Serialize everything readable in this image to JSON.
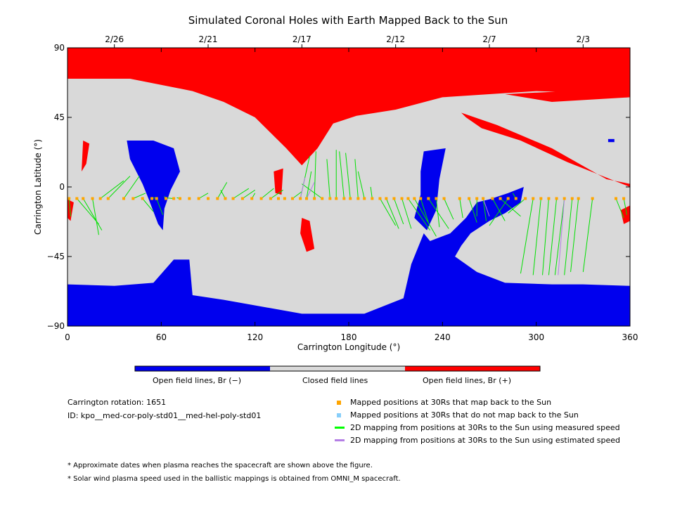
{
  "figure": {
    "title": "Simulated Coronal Holes with Earth Mapped Back to the Sun",
    "colorbar_labels": [
      "Open field lines, Br (−)",
      "Closed field lines",
      "Open field lines, Br (+)"
    ],
    "carrington_rotation_text": "Carrington rotation: 1651",
    "id_text": "ID: kpo__med-cor-poly-std01__med-hel-poly-std01",
    "legend": [
      {
        "label": "Mapped positions at 30Rs that map back to the Sun",
        "color": "#ffa500",
        "kind": "square"
      },
      {
        "label": "Mapped positions at 30Rs that do not map back to the Sun",
        "color": "#87cefa",
        "kind": "square"
      },
      {
        "label": "2D mapping from positions at 30Rs to the Sun using measured speed",
        "color": "#00ff00",
        "kind": "line"
      },
      {
        "label": "2D mapping from positions at 30Rs to the Sun using estimated speed",
        "color": "#b47ee5",
        "kind": "line"
      }
    ],
    "footnotes": [
      "* Approximate dates when plasma reaches the spacecraft are shown above the figure.",
      "* Solar wind plasma speed used in the ballistic mappings is obtained from OMNI_M spacecraft."
    ],
    "colors": {
      "open_negative": "#0000ee",
      "closed": "#d9d9d9",
      "open_positive": "#ff0000"
    }
  },
  "chart_data": {
    "type": "scatter",
    "title": "Simulated Coronal Holes with Earth Mapped Back to the Sun",
    "xlabel": "Carrington Longitude (°)",
    "ylabel": "Carrington Latitude (°)",
    "xlim": [
      0,
      360
    ],
    "ylim": [
      -90,
      90
    ],
    "xticks": [
      0,
      60,
      120,
      180,
      240,
      300,
      360
    ],
    "xtick_labels": [
      "0",
      "60",
      "120",
      "180",
      "240",
      "300",
      "360"
    ],
    "yticks": [
      -90,
      -45,
      0,
      45,
      90
    ],
    "ytick_labels": [
      "−90",
      "−45",
      "0",
      "45",
      "90"
    ],
    "top_dates": [
      {
        "lon": 30,
        "label": "2/26"
      },
      {
        "lon": 90,
        "label": "2/21"
      },
      {
        "lon": 150,
        "label": "2/17"
      },
      {
        "lon": 210,
        "label": "2/12"
      },
      {
        "lon": 270,
        "label": "2/7"
      },
      {
        "lon": 330,
        "label": "2/3"
      }
    ],
    "regions": [
      {
        "name": "Closed field lines",
        "color": "#d9d9d9",
        "polygon": [
          [
            0,
            60
          ],
          [
            40,
            69
          ],
          [
            90,
            66
          ],
          [
            130,
            64
          ],
          [
            200,
            62
          ],
          [
            250,
            67
          ],
          [
            300,
            68
          ],
          [
            360,
            70
          ],
          [
            360,
            -64
          ],
          [
            300,
            -63
          ],
          [
            250,
            -60
          ],
          [
            200,
            -70
          ],
          [
            150,
            -82
          ],
          [
            100,
            -70
          ],
          [
            60,
            -60
          ],
          [
            0,
            -60
          ]
        ]
      },
      {
        "name": "Open field lines, Br (+)",
        "color": "#ff0000",
        "polygon": [
          [
            0,
            90
          ],
          [
            360,
            90
          ],
          [
            360,
            60
          ],
          [
            300,
            62
          ],
          [
            240,
            58
          ],
          [
            210,
            50
          ],
          [
            185,
            46
          ],
          [
            170,
            41
          ],
          [
            160,
            25
          ],
          [
            150,
            14
          ],
          [
            140,
            25
          ],
          [
            130,
            35
          ],
          [
            120,
            45
          ],
          [
            100,
            55
          ],
          [
            80,
            62
          ],
          [
            40,
            70
          ],
          [
            0,
            70
          ]
        ]
      },
      {
        "name": "Open field lines, Br (+)",
        "color": "#ff0000",
        "polygon": [
          [
            252,
            48
          ],
          [
            275,
            40
          ],
          [
            310,
            25
          ],
          [
            345,
            5
          ],
          [
            360,
            2
          ],
          [
            360,
            0
          ],
          [
            350,
            4
          ],
          [
            320,
            16
          ],
          [
            290,
            30
          ],
          [
            265,
            38
          ],
          [
            255,
            45
          ]
        ]
      },
      {
        "name": "Open field lines, Br (+)",
        "color": "#ff0000",
        "polygon": [
          [
            280,
            60
          ],
          [
            310,
            55
          ],
          [
            360,
            58
          ],
          [
            360,
            62
          ],
          [
            320,
            62
          ]
        ]
      },
      {
        "name": "Open field lines, Br (+)",
        "color": "#ff0000",
        "polygon": [
          [
            132,
            10
          ],
          [
            138,
            12
          ],
          [
            137,
            -5
          ],
          [
            133,
            -4
          ]
        ]
      },
      {
        "name": "Open field lines, Br (+)",
        "color": "#ff0000",
        "polygon": [
          [
            150,
            -20
          ],
          [
            155,
            -22
          ],
          [
            158,
            -40
          ],
          [
            153,
            -42
          ],
          [
            149,
            -30
          ]
        ]
      },
      {
        "name": "Open field lines, Br (+)",
        "color": "#ff0000",
        "polygon": [
          [
            10,
            30
          ],
          [
            14,
            28
          ],
          [
            12,
            15
          ],
          [
            9,
            10
          ]
        ]
      },
      {
        "name": "Open field lines, Br (+)",
        "color": "#ff0000",
        "polygon": [
          [
            354,
            -15
          ],
          [
            360,
            -12
          ],
          [
            360,
            -22
          ],
          [
            356,
            -24
          ]
        ]
      },
      {
        "name": "Open field lines, Br (+)",
        "color": "#ff0000",
        "polygon": [
          [
            0,
            -8
          ],
          [
            4,
            -10
          ],
          [
            2,
            -22
          ],
          [
            0,
            -20
          ]
        ]
      },
      {
        "name": "Open field lines, Br (−)",
        "color": "#0000ee",
        "polygon": [
          [
            0,
            -63
          ],
          [
            30,
            -64
          ],
          [
            55,
            -62
          ],
          [
            68,
            -47
          ],
          [
            78,
            -47
          ],
          [
            80,
            -70
          ],
          [
            100,
            -73
          ],
          [
            150,
            -82
          ],
          [
            190,
            -82
          ],
          [
            215,
            -72
          ],
          [
            220,
            -50
          ],
          [
            228,
            -30
          ],
          [
            232,
            -35
          ],
          [
            245,
            -30
          ],
          [
            255,
            -20
          ],
          [
            262,
            -10
          ],
          [
            270,
            -8
          ],
          [
            282,
            -4
          ],
          [
            292,
            0
          ],
          [
            290,
            -10
          ],
          [
            280,
            -17
          ],
          [
            270,
            -22
          ],
          [
            258,
            -30
          ],
          [
            252,
            -38
          ],
          [
            248,
            -45
          ],
          [
            262,
            -55
          ],
          [
            280,
            -62
          ],
          [
            310,
            -63
          ],
          [
            330,
            -63
          ],
          [
            360,
            -64
          ],
          [
            360,
            -90
          ],
          [
            0,
            -90
          ]
        ]
      },
      {
        "name": "Open field lines, Br (−)",
        "color": "#0000ee",
        "polygon": [
          [
            228,
            23
          ],
          [
            242,
            25
          ],
          [
            238,
            5
          ],
          [
            236,
            -15
          ],
          [
            230,
            -28
          ],
          [
            222,
            -20
          ],
          [
            226,
            -5
          ],
          [
            226,
            10
          ]
        ]
      },
      {
        "name": "Open field lines, Br (−)",
        "color": "#0000ee",
        "polygon": [
          [
            38,
            30
          ],
          [
            55,
            30
          ],
          [
            68,
            25
          ],
          [
            72,
            10
          ],
          [
            66,
            -2
          ],
          [
            62,
            -14
          ],
          [
            61,
            -28
          ],
          [
            58,
            -24
          ],
          [
            52,
            -8
          ],
          [
            48,
            2
          ],
          [
            44,
            10
          ],
          [
            40,
            18
          ]
        ]
      },
      {
        "name": "Open field lines, Br (−)",
        "color": "#0000ee",
        "polygon": [
          [
            346,
            31
          ],
          [
            350,
            31
          ],
          [
            350,
            29
          ],
          [
            346,
            29
          ]
        ]
      }
    ],
    "series": [
      {
        "name": "Mapped positions at 30Rs that map back to the Sun",
        "kind": "points",
        "lat": -7.5,
        "lon": [
          1,
          6,
          10,
          16,
          21,
          26,
          36,
          42,
          48,
          54,
          57,
          63,
          68,
          72,
          78,
          84,
          90,
          96,
          101,
          106,
          112,
          118,
          124,
          130,
          135,
          139,
          144,
          149,
          153,
          158,
          163,
          168,
          172,
          177,
          181,
          186,
          190,
          195,
          200,
          204,
          209,
          214,
          218,
          222,
          226,
          231,
          236,
          241,
          251,
          257,
          262,
          266,
          272,
          277,
          282,
          287,
          293,
          298,
          303,
          308,
          313,
          318,
          323,
          327,
          336,
          351,
          356
        ]
      },
      {
        "name": "2D mapping from positions at 30Rs to the Sun using measured speed",
        "kind": "segments",
        "segments": [
          [
            1,
            -7.5,
            2,
            -19
          ],
          [
            6,
            -7.5,
            20,
            -24
          ],
          [
            10,
            -7.5,
            22,
            -28
          ],
          [
            16,
            -7.5,
            20,
            -31
          ],
          [
            21,
            -7.5,
            36,
            4
          ],
          [
            26,
            -7.5,
            40,
            7
          ],
          [
            36,
            -7.5,
            46,
            7
          ],
          [
            42,
            -7.5,
            50,
            -4
          ],
          [
            48,
            -7.5,
            55,
            -16
          ],
          [
            54,
            -7.5,
            56,
            -7
          ],
          [
            57,
            -7.5,
            61,
            -18
          ],
          [
            63,
            -7.5,
            62,
            -6
          ],
          [
            68,
            -7.5,
            62,
            -7
          ],
          [
            72,
            -7.5,
            70,
            -7
          ],
          [
            84,
            -7.5,
            90,
            -4
          ],
          [
            96,
            -7.5,
            102,
            3
          ],
          [
            101,
            -7.5,
            98,
            -2
          ],
          [
            106,
            -7.5,
            116,
            -1
          ],
          [
            112,
            -7.5,
            120,
            -2
          ],
          [
            118,
            -7.5,
            120,
            -4
          ],
          [
            124,
            -7.5,
            132,
            -1
          ],
          [
            130,
            -7.5,
            138,
            -2
          ],
          [
            144,
            -7.5,
            150,
            -3
          ],
          [
            149,
            -7.5,
            155,
            20
          ],
          [
            153,
            -7.5,
            156,
            10
          ],
          [
            158,
            -7.5,
            159,
            23
          ],
          [
            163,
            -7.5,
            150,
            2
          ],
          [
            168,
            -7.5,
            166,
            18
          ],
          [
            172,
            -7.5,
            172,
            24
          ],
          [
            177,
            -7.5,
            174,
            23
          ],
          [
            181,
            -7.5,
            178,
            22
          ],
          [
            186,
            -7.5,
            184,
            18
          ],
          [
            190,
            -7.5,
            186,
            10
          ],
          [
            195,
            -7.5,
            194,
            0
          ],
          [
            200,
            -7.5,
            210,
            -25
          ],
          [
            204,
            -7.5,
            212,
            -27
          ],
          [
            209,
            -7.5,
            215,
            -24
          ],
          [
            214,
            -7.5,
            220,
            -27
          ],
          [
            218,
            -7.5,
            232,
            -28
          ],
          [
            222,
            -7.5,
            236,
            -32
          ],
          [
            226,
            -7.5,
            231,
            -23
          ],
          [
            231,
            -7.5,
            244,
            -27
          ],
          [
            236,
            -7.5,
            238,
            -26
          ],
          [
            241,
            -7.5,
            247,
            -21
          ],
          [
            251,
            -7.5,
            253,
            -20
          ],
          [
            257,
            -7.5,
            262,
            -23
          ],
          [
            262,
            -7.5,
            262,
            -19
          ],
          [
            266,
            -7.5,
            268,
            -22
          ],
          [
            272,
            -7.5,
            280,
            -22
          ],
          [
            277,
            -7.5,
            290,
            -19
          ],
          [
            282,
            -7.5,
            270,
            -25
          ],
          [
            287,
            -7.5,
            285,
            -4
          ],
          [
            293,
            -7.5,
            282,
            -17
          ],
          [
            298,
            -7.5,
            290,
            -56
          ],
          [
            303,
            -7.5,
            298,
            -57
          ],
          [
            308,
            -7.5,
            304,
            -57
          ],
          [
            313,
            -7.5,
            308,
            -57
          ],
          [
            318,
            -7.5,
            312,
            -57
          ],
          [
            323,
            -7.5,
            318,
            -57
          ],
          [
            327,
            -7.5,
            322,
            -55
          ],
          [
            336,
            -7.5,
            330,
            -55
          ],
          [
            351,
            -7.5,
            356,
            -20
          ],
          [
            356,
            -7.5,
            358,
            -18
          ]
        ]
      },
      {
        "name": "2D mapping from positions at 30Rs to the Sun using estimated speed",
        "kind": "segments",
        "segments": [
          [
            149,
            -7.5,
            152,
            6
          ],
          [
            153,
            -7.5,
            158,
            3
          ],
          [
            266,
            -7.5,
            270,
            -19
          ],
          [
            318,
            -7.5,
            314,
            -57
          ]
        ]
      }
    ]
  }
}
